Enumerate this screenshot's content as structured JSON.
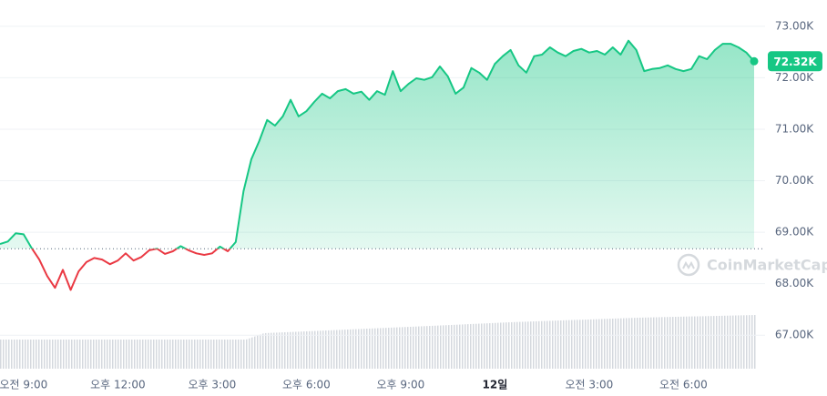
{
  "chart_data": {
    "type": "line",
    "series": [
      {
        "name": "Price",
        "color": "#16c784",
        "below_color": "#ea3943",
        "values": [
          68.77,
          68.82,
          68.98,
          68.96,
          68.7,
          68.47,
          68.15,
          67.92,
          68.27,
          67.88,
          68.24,
          68.42,
          68.5,
          68.47,
          68.38,
          68.45,
          68.59,
          68.45,
          68.52,
          68.65,
          68.68,
          68.58,
          68.63,
          68.73,
          68.65,
          68.59,
          68.56,
          68.59,
          68.72,
          68.63,
          68.81,
          69.8,
          70.42,
          70.77,
          71.18,
          71.07,
          71.25,
          71.57,
          71.25,
          71.35,
          71.53,
          71.69,
          71.6,
          71.74,
          71.78,
          71.69,
          71.73,
          71.57,
          71.74,
          71.67,
          72.13,
          71.74,
          71.88,
          71.99,
          71.96,
          72.01,
          72.22,
          72.03,
          71.69,
          71.81,
          72.19,
          72.1,
          71.96,
          72.27,
          72.42,
          72.54,
          72.24,
          72.1,
          72.42,
          72.45,
          72.59,
          72.49,
          72.42,
          72.52,
          72.56,
          72.49,
          72.52,
          72.45,
          72.59,
          72.45,
          72.72,
          72.54,
          72.13,
          72.17,
          72.19,
          72.24,
          72.17,
          72.13,
          72.17,
          72.42,
          72.36,
          72.54,
          72.66,
          72.66,
          72.59,
          72.49,
          72.32
        ]
      }
    ],
    "baseline": 68.68,
    "current_price": {
      "value": 72.32,
      "label": "72.32K"
    },
    "xlim": [
      0,
      96
    ],
    "xticks": [
      {
        "value": 3,
        "label": "오전 9:00"
      },
      {
        "value": 15,
        "label": "오후 12:00"
      },
      {
        "value": 27,
        "label": "오후 3:00"
      },
      {
        "value": 39,
        "label": "오후 6:00"
      },
      {
        "value": 51,
        "label": "오후 9:00"
      },
      {
        "value": 63,
        "label": "12일"
      },
      {
        "value": 75,
        "label": "오전 3:00"
      },
      {
        "value": 87,
        "label": "오전 6:00"
      }
    ],
    "ylim": [
      66.35,
      73.51
    ],
    "yticks": [
      {
        "value": 67,
        "label": "67.00K"
      },
      {
        "value": 68,
        "label": "68.00K"
      },
      {
        "value": 69,
        "label": "69.00K"
      },
      {
        "value": 70,
        "label": "70.00K"
      },
      {
        "value": 71,
        "label": "71.00K"
      },
      {
        "value": 72,
        "label": "72.00K"
      },
      {
        "value": 73,
        "label": "73.00K"
      }
    ],
    "grid": true,
    "watermark": "CoinMarketCap"
  }
}
